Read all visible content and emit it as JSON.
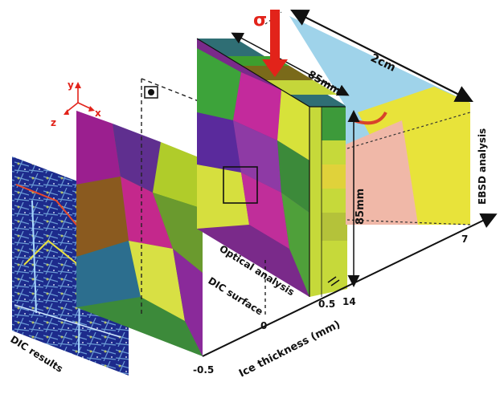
{
  "labels": {
    "sigma": "σ",
    "width_top": "2cm",
    "depth": "85mm",
    "height": "85mm",
    "ebsd": "EBSD analysis",
    "optical": "Optical analysis",
    "dic_surface": "DIC surface",
    "dic_results": "DIC results",
    "axis_title": "Ice thickness (mm)",
    "tick_neg": "-0.5",
    "tick_zero": "0",
    "tick_half": "0.5",
    "tick_14": "14",
    "tick_7": "7",
    "axis_y": "y",
    "axis_x": "x",
    "axis_z": "z"
  },
  "colors": {
    "arrow_red": "#e2231a",
    "axis_red": "#e2231a",
    "dic_bg": "#1c2a8a",
    "ebsd_blue": "#9fd3ea",
    "ebsd_yellow": "#e8e33a",
    "ebsd_pink": "#f0b8a8"
  },
  "icons": {
    "camera": "camera-icon"
  }
}
